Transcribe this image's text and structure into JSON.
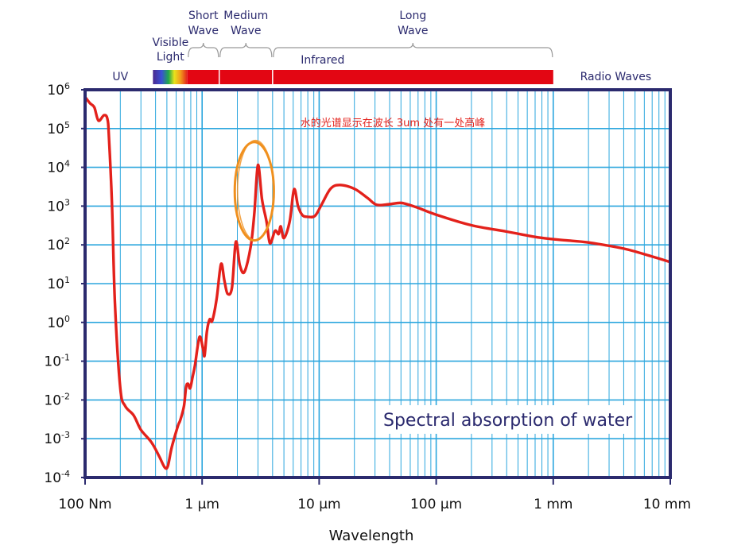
{
  "chart_data": {
    "type": "line",
    "title": "Spectral absorption of water",
    "xlabel": "Wavelength",
    "ylabel": "",
    "x_scale": "log",
    "y_scale": "log",
    "x_unit": "m",
    "x_range": [
      1e-07,
      0.01
    ],
    "y_range": [
      0.0001,
      1000000
    ],
    "x_ticks": [
      {
        "value": 1e-07,
        "label": "100 Nm"
      },
      {
        "value": 1e-06,
        "label": "1 μm"
      },
      {
        "value": 1e-05,
        "label": "10 μm"
      },
      {
        "value": 0.0001,
        "label": "100 μm"
      },
      {
        "value": 0.001,
        "label": "1 mm"
      },
      {
        "value": 0.01,
        "label": "10 mm"
      }
    ],
    "y_ticks": [
      {
        "value": 1000000,
        "base": "10",
        "exp": "6"
      },
      {
        "value": 100000,
        "base": "10",
        "exp": "5"
      },
      {
        "value": 10000,
        "base": "10",
        "exp": "4"
      },
      {
        "value": 1000,
        "base": "10",
        "exp": "3"
      },
      {
        "value": 100,
        "base": "10",
        "exp": "2"
      },
      {
        "value": 10,
        "base": "10",
        "exp": "1"
      },
      {
        "value": 1,
        "base": "10",
        "exp": "0"
      },
      {
        "value": 0.1,
        "base": "10",
        "exp": "-1"
      },
      {
        "value": 0.01,
        "base": "10",
        "exp": "-2"
      },
      {
        "value": 0.001,
        "base": "10",
        "exp": "-3"
      },
      {
        "value": 0.0001,
        "base": "10",
        "exp": "-4"
      }
    ],
    "grid": true,
    "series": [
      {
        "color": "#e3211b",
        "points": [
          [
            1e-07,
            650000
          ],
          [
            1.1e-07,
            450000
          ],
          [
            1.2e-07,
            350000
          ],
          [
            1.3e-07,
            160000
          ],
          [
            1.45e-07,
            220000
          ],
          [
            1.55e-07,
            180000
          ],
          [
            1.6e-07,
            60000
          ],
          [
            1.7e-07,
            1000
          ],
          [
            1.8e-07,
            3
          ],
          [
            2e-07,
            0.02
          ],
          [
            2.2e-07,
            0.007
          ],
          [
            2.6e-07,
            0.004
          ],
          [
            3e-07,
            0.0017
          ],
          [
            3.7e-07,
            0.0008
          ],
          [
            4.3e-07,
            0.00035
          ],
          [
            4.8e-07,
            0.00018
          ],
          [
            5.1e-07,
            0.0002
          ],
          [
            5.5e-07,
            0.0006
          ],
          [
            6.2e-07,
            0.0021
          ],
          [
            6.5e-07,
            0.003
          ],
          [
            7e-07,
            0.007
          ],
          [
            7.3e-07,
            0.022
          ],
          [
            7.6e-07,
            0.026
          ],
          [
            7.9e-07,
            0.02
          ],
          [
            8.3e-07,
            0.04
          ],
          [
            8.7e-07,
            0.08
          ],
          [
            9.5e-07,
            0.42
          ],
          [
            1.02e-06,
            0.2
          ],
          [
            1.05e-06,
            0.14
          ],
          [
            1.1e-06,
            0.6
          ],
          [
            1.16e-06,
            1.2
          ],
          [
            1.22e-06,
            1.1
          ],
          [
            1.33e-06,
            4
          ],
          [
            1.45e-06,
            32
          ],
          [
            1.55e-06,
            12
          ],
          [
            1.65e-06,
            5.5
          ],
          [
            1.8e-06,
            8
          ],
          [
            1.94e-06,
            120
          ],
          [
            2.1e-06,
            30
          ],
          [
            2.3e-06,
            20
          ],
          [
            2.6e-06,
            90
          ],
          [
            2.8e-06,
            700
          ],
          [
            3e-06,
            11500
          ],
          [
            3.25e-06,
            1500
          ],
          [
            3.55e-06,
            400
          ],
          [
            3.8e-06,
            110
          ],
          [
            4.2e-06,
            230
          ],
          [
            4.5e-06,
            190
          ],
          [
            4.7e-06,
            300
          ],
          [
            5e-06,
            150
          ],
          [
            5.6e-06,
            400
          ],
          [
            6.1e-06,
            2700
          ],
          [
            6.6e-06,
            1000
          ],
          [
            7.2e-06,
            580
          ],
          [
            8e-06,
            530
          ],
          [
            9.2e-06,
            560
          ],
          [
            1.05e-05,
            1100
          ],
          [
            1.25e-05,
            2800
          ],
          [
            1.5e-05,
            3500
          ],
          [
            2e-05,
            2800
          ],
          [
            2.6e-05,
            1600
          ],
          [
            3.1e-05,
            1080
          ],
          [
            4e-05,
            1120
          ],
          [
            5.1e-05,
            1200
          ],
          [
            7e-05,
            900
          ],
          [
            0.0001,
            600
          ],
          [
            0.0002,
            320
          ],
          [
            0.0004,
            220
          ],
          [
            0.0007,
            160
          ],
          [
            0.001,
            140
          ],
          [
            0.0013,
            130
          ],
          [
            0.002,
            115
          ],
          [
            0.004,
            80
          ],
          [
            0.007,
            50
          ],
          [
            0.01,
            36
          ]
        ]
      }
    ],
    "spectrum_bands": [
      {
        "name": "UV",
        "color": "#2b2a6e",
        "label_x_um": 0.2
      },
      {
        "name": "Visible Light",
        "label": [
          "Visible",
          "Light"
        ],
        "start_um": 0.38,
        "end_um": 0.75
      },
      {
        "name": "Infrared",
        "color": "#e30613",
        "start_um": 0.75,
        "end_um": 1000
      },
      {
        "name": "Radio Waves",
        "color": "#2b2a6e",
        "start_um": 1000,
        "end_um": 10000
      }
    ],
    "ir_subbands": [
      {
        "label": [
          "Short",
          "Wave"
        ],
        "start_um": 0.75,
        "end_um": 1.4
      },
      {
        "label": [
          "Medium",
          "Wave"
        ],
        "start_um": 1.4,
        "end_um": 4
      },
      {
        "label": [
          "Long",
          "Wave"
        ],
        "start_um": 4,
        "end_um": 1000
      }
    ],
    "annotations": [
      {
        "text": "水的光谱显示在波长 3um 处有一处高峰",
        "color": "#e3211b"
      },
      {
        "shape": "ellipse",
        "color": "#f0901e",
        "center_x_um": 2.9,
        "center_y": 3500,
        "x_from_um": 1.9,
        "x_to_um": 4.1,
        "y_from": 130,
        "y_to": 45000
      }
    ]
  }
}
